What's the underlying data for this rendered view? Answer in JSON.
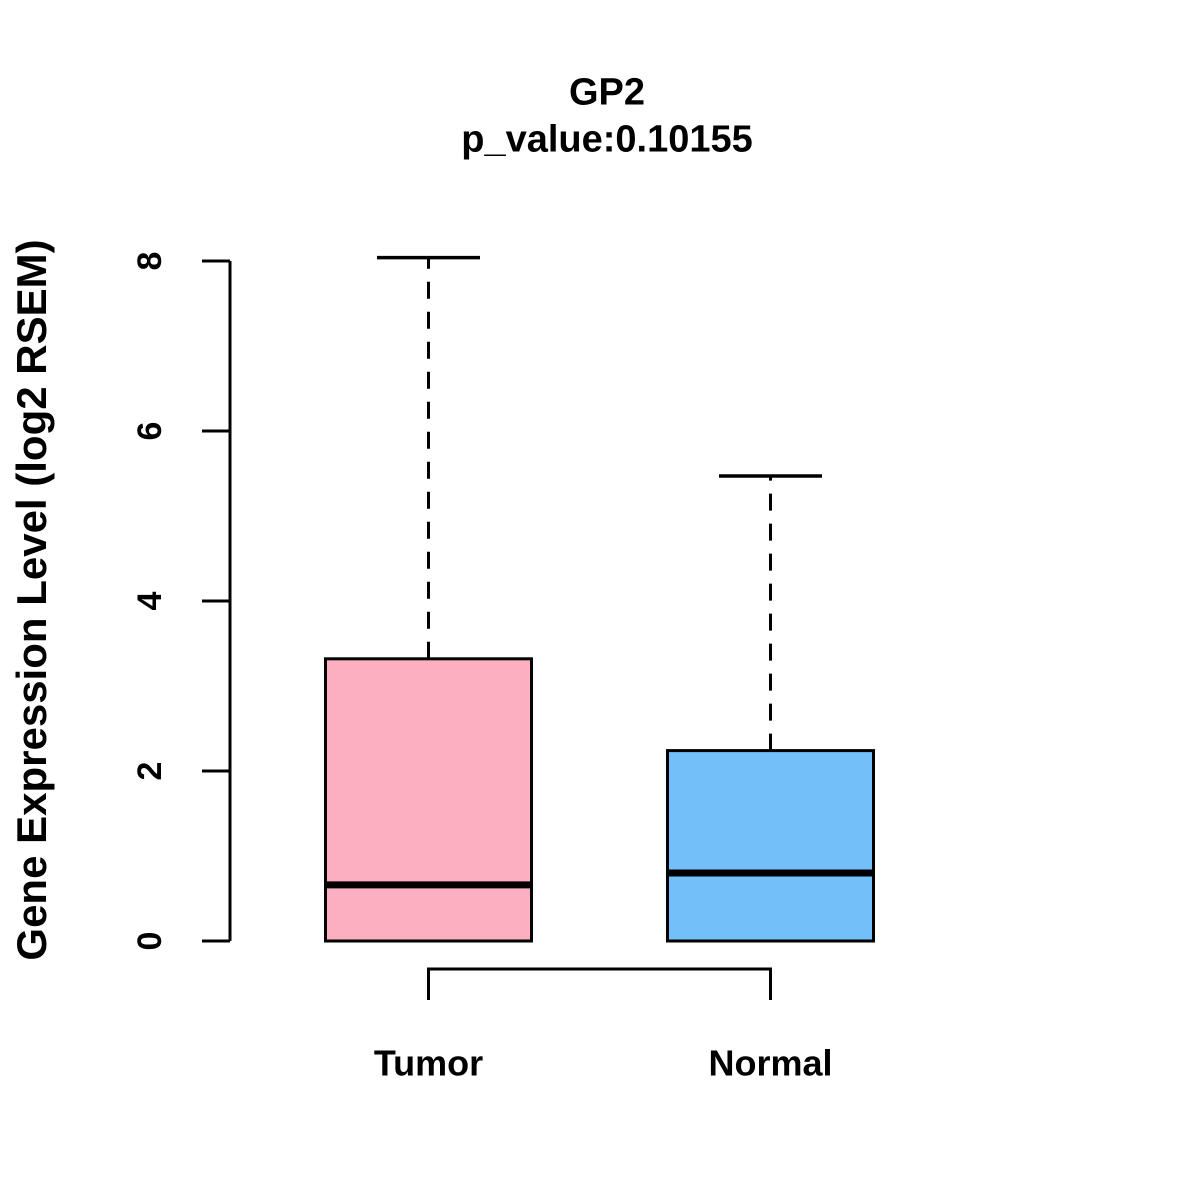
{
  "figure": {
    "background": "#FFFFFF",
    "axis_color": "#000000",
    "text_color": "#000000"
  },
  "chart_data": {
    "type": "boxplot",
    "title": "GP2",
    "subtitle": "p_value:0.10155",
    "ylabel": "Gene Expression Level (log2 RSEM)",
    "xlabel": "",
    "categories": [
      "Tumor",
      "Normal"
    ],
    "yticks": [
      0,
      2,
      4,
      6,
      8
    ],
    "ylim": [
      0,
      8.05
    ],
    "grid": false,
    "legend": "none",
    "series": [
      {
        "name": "Tumor",
        "fill": "#FCAFC0",
        "stroke": "#000000",
        "whisker_low": 0,
        "q1": 0,
        "median": 0.66,
        "q3": 3.32,
        "whisker_high": 8.04
      },
      {
        "name": "Normal",
        "fill": "#73BFFA",
        "stroke": "#000000",
        "whisker_low": 0,
        "q1": 0,
        "median": 0.8,
        "q3": 2.24,
        "whisker_high": 5.47
      }
    ],
    "comparison_bracket": {
      "between": [
        "Tumor",
        "Normal"
      ]
    }
  }
}
